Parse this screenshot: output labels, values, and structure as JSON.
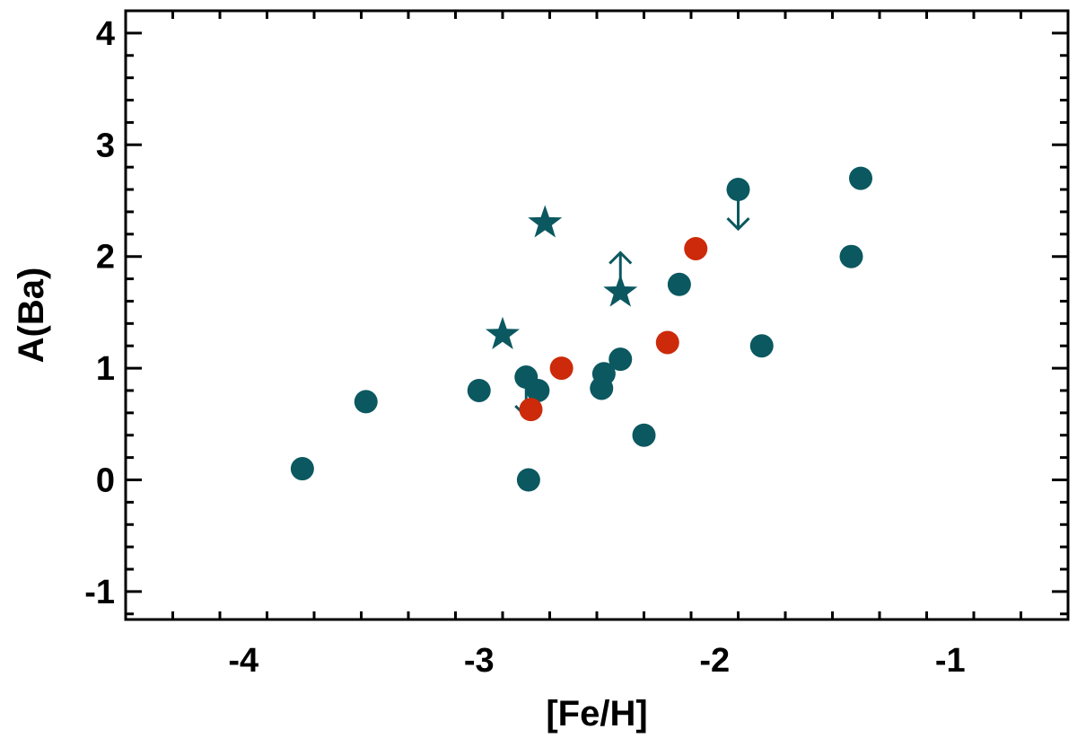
{
  "chart_data": {
    "type": "scatter",
    "title": "",
    "xlabel": "[Fe/H]",
    "ylabel": "A(Ba)",
    "xlim": [
      -4.5,
      -0.5
    ],
    "ylim": [
      -1.25,
      4.2
    ],
    "xticks": [
      -4,
      -3,
      -2,
      -1
    ],
    "xtick_labels": [
      "-4",
      "-3",
      "-2",
      "-1"
    ],
    "yticks": [
      -1,
      0,
      1,
      2,
      3,
      4
    ],
    "ytick_labels": [
      "-1",
      "0",
      "1",
      "2",
      "3",
      "4"
    ],
    "grid": false,
    "colors": {
      "teal": "#0b5860",
      "red": "#cc2a0a",
      "axis": "#000000"
    },
    "series": [
      {
        "marker": "circle",
        "color": "#0b5860",
        "points": [
          {
            "x": -3.75,
            "y": 0.1
          },
          {
            "x": -3.48,
            "y": 0.7
          },
          {
            "x": -3.0,
            "y": 0.8
          },
          {
            "x": -2.8,
            "y": 0.92,
            "limit": "upper"
          },
          {
            "x": -2.75,
            "y": 0.8
          },
          {
            "x": -2.79,
            "y": 0.0
          },
          {
            "x": -2.47,
            "y": 0.95
          },
          {
            "x": -2.48,
            "y": 0.82
          },
          {
            "x": -2.4,
            "y": 1.08
          },
          {
            "x": -2.3,
            "y": 0.4
          },
          {
            "x": -2.15,
            "y": 1.75
          },
          {
            "x": -1.9,
            "y": 2.6,
            "limit": "upper"
          },
          {
            "x": -1.8,
            "y": 1.2
          },
          {
            "x": -1.42,
            "y": 2.0
          },
          {
            "x": -1.38,
            "y": 2.7
          }
        ]
      },
      {
        "marker": "circle",
        "color": "#cc2a0a",
        "points": [
          {
            "x": -2.78,
            "y": 0.63
          },
          {
            "x": -2.65,
            "y": 1.0
          },
          {
            "x": -2.2,
            "y": 1.23
          },
          {
            "x": -2.08,
            "y": 2.07
          }
        ]
      },
      {
        "marker": "star",
        "color": "#0b5860",
        "points": [
          {
            "x": -2.9,
            "y": 1.3
          },
          {
            "x": -2.72,
            "y": 2.3
          },
          {
            "x": -2.4,
            "y": 1.68,
            "limit": "lower"
          }
        ]
      }
    ]
  }
}
